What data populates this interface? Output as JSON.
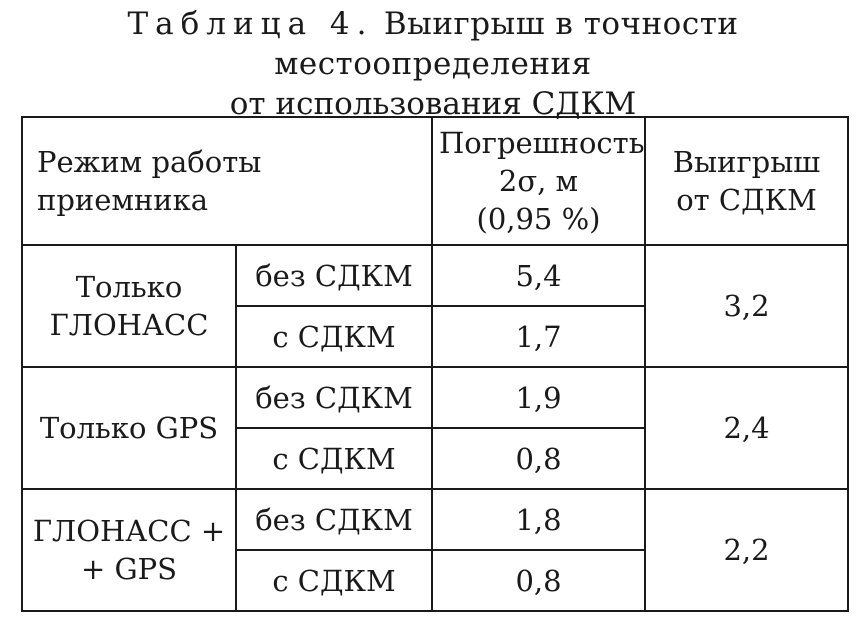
{
  "caption": {
    "label": "Таблица 4.",
    "title_line1": "Выигрыш в точности местоопределения",
    "title_line2": "от использования СДКМ"
  },
  "table": {
    "headers": {
      "mode": "Режим работы приемника",
      "error_line1": "Погрешность",
      "error_line2": "2σ, м",
      "error_line3": "(0,95 %)",
      "gain_line1": "Выигрыш",
      "gain_line2": "от СДКМ"
    },
    "groups": [
      {
        "receiver_line1": "Только",
        "receiver_line2": "ГЛОНАСС",
        "rows": [
          {
            "mode": "без СДКМ",
            "error": "5,4"
          },
          {
            "mode": "с СДКМ",
            "error": "1,7"
          }
        ],
        "gain": "3,2"
      },
      {
        "receiver_line1": "Только GPS",
        "receiver_line2": "",
        "rows": [
          {
            "mode": "без СДКМ",
            "error": "1,9"
          },
          {
            "mode": "с СДКМ",
            "error": "0,8"
          }
        ],
        "gain": "2,4"
      },
      {
        "receiver_line1": "ГЛОНАСС +",
        "receiver_line2": "+ GPS",
        "rows": [
          {
            "mode": "без СДКМ",
            "error": "1,8"
          },
          {
            "mode": "с СДКМ",
            "error": "0,8"
          }
        ],
        "gain": "2,2"
      }
    ]
  }
}
